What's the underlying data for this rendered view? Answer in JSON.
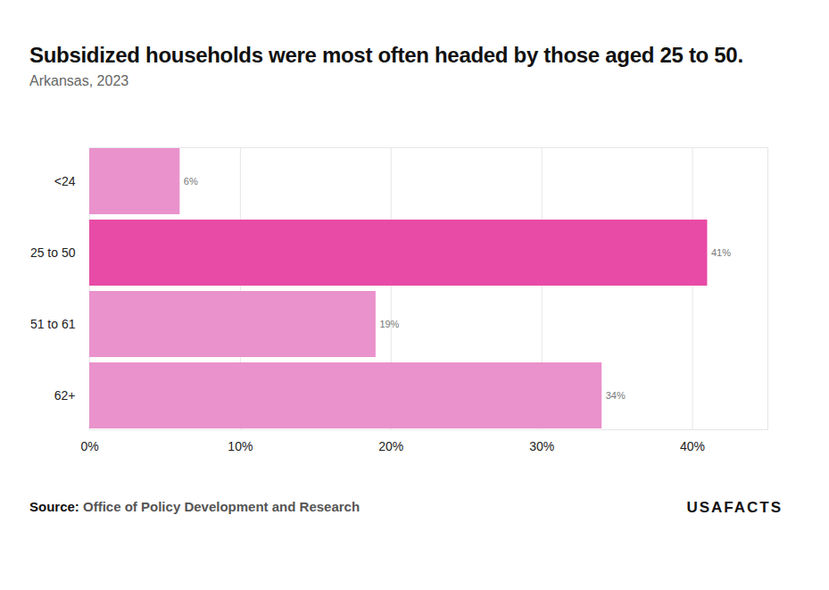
{
  "chart_data": {
    "type": "bar",
    "orientation": "horizontal",
    "title": "Subsidized households were most often headed by those aged 25 to 50.",
    "subtitle": "Arkansas, 2023",
    "categories": [
      "<24",
      "25 to 50",
      "51 to 61",
      "62+"
    ],
    "values": [
      6,
      41,
      19,
      34
    ],
    "value_labels": [
      "6%",
      "41%",
      "19%",
      "34%"
    ],
    "colors": [
      "#ea92cc",
      "#e84ba6",
      "#ea92cc",
      "#ea92cc"
    ],
    "xlim": [
      0,
      45
    ],
    "xticks": [
      {
        "value": 0,
        "label": "0%"
      },
      {
        "value": 10,
        "label": "10%"
      },
      {
        "value": 20,
        "label": "20%"
      },
      {
        "value": 30,
        "label": "30%"
      },
      {
        "value": 40,
        "label": "40%"
      }
    ],
    "grid": true,
    "data_labels": true,
    "source_label": "Source:",
    "source": "Office of Policy Development and Research",
    "logo": "USAFACTS"
  }
}
